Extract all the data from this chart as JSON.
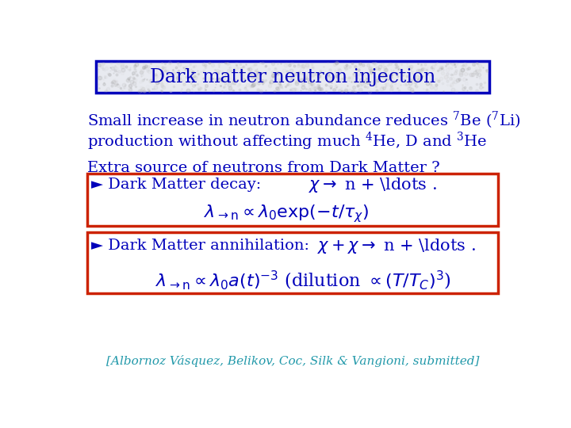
{
  "title": "Dark matter neutron injection",
  "title_color": "#0000BB",
  "title_box_edge_color": "#0000BB",
  "background_color": "#FFFFFF",
  "text_color": "#0000BB",
  "red_box_color": "#CC2200",
  "citation_color": "#2299AA",
  "citation": "[Albornoz Vásquez, Belikov, Coc, Silk & Vangioni, submitted]",
  "title_fs": 17,
  "body_fs": 14,
  "formula_fs": 15
}
